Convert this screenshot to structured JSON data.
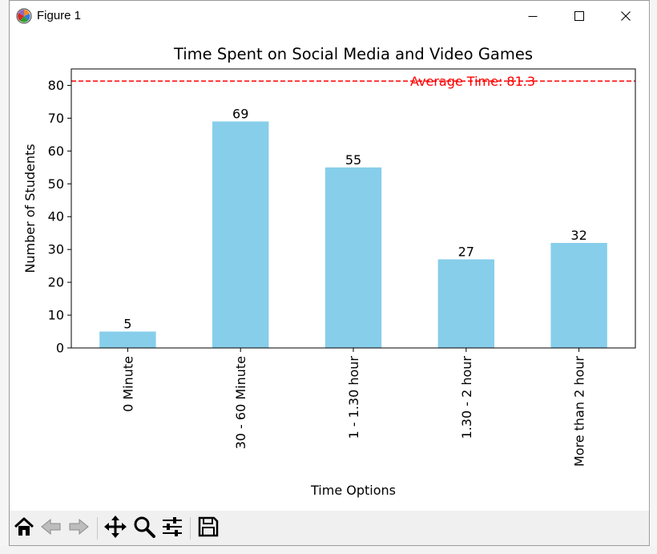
{
  "window": {
    "title": "Figure 1"
  },
  "toolbar": {
    "buttons": [
      "home-icon",
      "back-icon",
      "forward-icon",
      "pan-icon",
      "zoom-icon",
      "configure-subplots-icon",
      "save-icon"
    ]
  },
  "chart_data": {
    "type": "bar",
    "title": "Time Spent on Social Media and Video Games",
    "xlabel": "Time Options",
    "ylabel": "Number of Students",
    "categories": [
      "0 Minute",
      "30 - 60 Minute",
      "1 - 1.30 hour",
      "1.30 - 2 hour",
      "More than 2 hour"
    ],
    "values": [
      5,
      69,
      55,
      27,
      32
    ],
    "data_labels": [
      "5",
      "69",
      "55",
      "27",
      "32"
    ],
    "ylim": [
      0,
      85
    ],
    "yticks": [
      0,
      10,
      20,
      30,
      40,
      50,
      60,
      70,
      80
    ],
    "bar_color": "#87ceeb",
    "reference_line": {
      "value": 81.3,
      "label": "Average Time: 81.3",
      "color": "#ff0000",
      "style": "dashed"
    },
    "grid": false,
    "legend": "none"
  }
}
